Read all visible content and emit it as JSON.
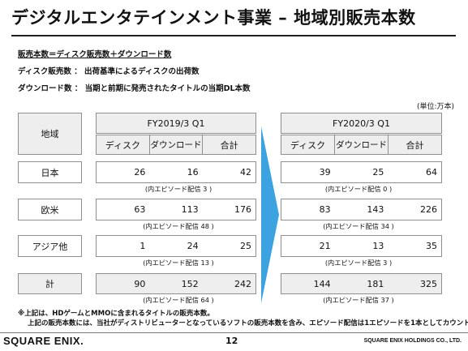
{
  "title": "デジタルエンタテインメント事業 – 地域別販売本数",
  "notes": {
    "definition": "販売本数＝ディスク販売数＋ダウンロード数",
    "disc": "ディスク販売数 ： 出荷基準によるディスクの出荷数",
    "download": "ダウンロード数 ： 当期と前期に発売されたタイトルの当期DL本数"
  },
  "unit": "(単位:万本)",
  "region_header": "地域",
  "periods": [
    "FY2019/3 Q1",
    "FY2020/3 Q1"
  ],
  "columns": [
    "ディスク",
    "ダウンロード",
    "合計"
  ],
  "rows": [
    {
      "region": "日本",
      "fy2019": [
        "26",
        "16",
        "42"
      ],
      "fy2019_note": "(内エピソード配信 3 )",
      "fy2020": [
        "39",
        "25",
        "64"
      ],
      "fy2020_note": "(内エピソード配信 0 )"
    },
    {
      "region": "欧米",
      "fy2019": [
        "63",
        "113",
        "176"
      ],
      "fy2019_note": "(内エピソード配信 48 )",
      "fy2020": [
        "83",
        "143",
        "226"
      ],
      "fy2020_note": "(内エピソード配信 34 )"
    },
    {
      "region": "アジア他",
      "fy2019": [
        "1",
        "24",
        "25"
      ],
      "fy2019_note": "(内エピソード配信 13 )",
      "fy2020": [
        "21",
        "13",
        "35"
      ],
      "fy2020_note": "(内エピソード配信 3 )"
    },
    {
      "region": "計",
      "fy2019": [
        "90",
        "152",
        "242"
      ],
      "fy2019_note": "(内エピソード配信 64 )",
      "fy2020": [
        "144",
        "181",
        "325"
      ],
      "fy2020_note": "(内エピソード配信 37 )"
    }
  ],
  "footnotes": [
    "※上記は、HDゲームとMMOに含まれるタイトルの販売本数。",
    "上記の販売本数には、当社がディストリビューターとなっているソフトの販売本数を含み、エピソード配信は1エピソードを1本としてカウント。"
  ],
  "footer": {
    "logo": "SQUARE ENIX.",
    "page": "12",
    "company": "SQUARE ENIX HOLDINGS CO., LTD."
  },
  "colors": {
    "cell_fill": "#eeeeee",
    "arrow": "#3da3e0",
    "border": "#8f8f8f"
  }
}
